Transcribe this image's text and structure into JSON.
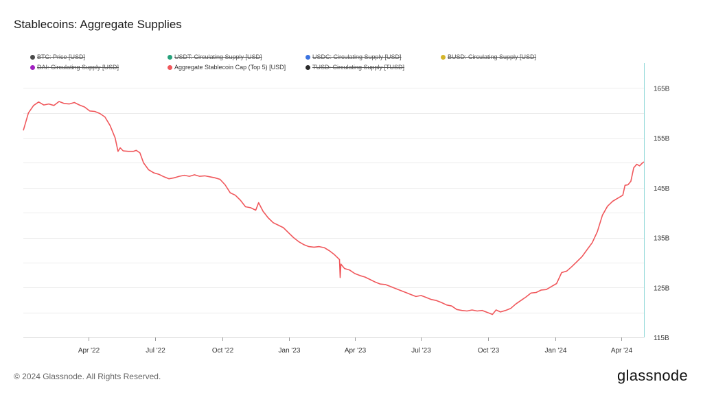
{
  "title": "Stablecoins: Aggregate Supplies",
  "footer": "© 2024 Glassnode. All Rights Reserved.",
  "logo": "glassnode",
  "legend": [
    {
      "label": "BTC: Price [USD]",
      "color": "#4a4a4a",
      "active": false
    },
    {
      "label": "USDT: Circulating Supply [USD]",
      "color": "#26a17b",
      "active": false
    },
    {
      "label": "USDC: Circulating Supply [USD]",
      "color": "#3b73e0",
      "active": false
    },
    {
      "label": "BUSD: Circulating Supply [USD]",
      "color": "#d4b52a",
      "active": false
    },
    {
      "label": "DAI: Circulating Supply [USD]",
      "color": "#a020c0",
      "active": false
    },
    {
      "label": "Aggregate Stablecoin Cap (Top 5) [USD]",
      "color": "#f0575b",
      "active": true
    },
    {
      "label": "TUSD: Circulating Supply [TUSD]",
      "color": "#2a2a2a",
      "active": false
    }
  ],
  "chart_data": {
    "type": "line",
    "title": "Stablecoins: Aggregate Supplies",
    "x_ticks": [
      "Apr '22",
      "Jul '22",
      "Oct '22",
      "Jan '23",
      "Apr '23",
      "Jul '23",
      "Oct '23",
      "Jan '24",
      "Apr '24"
    ],
    "y_ticks": [
      "115B",
      "125B",
      "135B",
      "145B",
      "155B",
      "165B"
    ],
    "ylim": [
      115,
      170
    ],
    "y_unit": "B USD",
    "y_axis_side": "right",
    "grid": "horizontal",
    "series": [
      {
        "name": "Aggregate Stablecoin Cap (Top 5) [USD]",
        "color": "#f0575b",
        "points": [
          [
            "2022-01-01",
            156.5
          ],
          [
            "2022-01-08",
            160.0
          ],
          [
            "2022-01-15",
            161.5
          ],
          [
            "2022-01-22",
            162.2
          ],
          [
            "2022-01-29",
            161.6
          ],
          [
            "2022-02-05",
            161.8
          ],
          [
            "2022-02-12",
            161.5
          ],
          [
            "2022-02-19",
            162.3
          ],
          [
            "2022-02-26",
            161.9
          ],
          [
            "2022-03-05",
            161.8
          ],
          [
            "2022-03-12",
            162.1
          ],
          [
            "2022-03-19",
            161.6
          ],
          [
            "2022-03-26",
            161.2
          ],
          [
            "2022-04-02",
            160.4
          ],
          [
            "2022-04-09",
            160.3
          ],
          [
            "2022-04-16",
            159.9
          ],
          [
            "2022-04-23",
            159.2
          ],
          [
            "2022-04-30",
            157.5
          ],
          [
            "2022-05-07",
            155.0
          ],
          [
            "2022-05-11",
            152.3
          ],
          [
            "2022-05-14",
            153.0
          ],
          [
            "2022-05-18",
            152.4
          ],
          [
            "2022-05-25",
            152.3
          ],
          [
            "2022-06-01",
            152.3
          ],
          [
            "2022-06-05",
            152.5
          ],
          [
            "2022-06-10",
            152.0
          ],
          [
            "2022-06-15",
            150.0
          ],
          [
            "2022-06-22",
            148.6
          ],
          [
            "2022-06-29",
            148.0
          ],
          [
            "2022-07-06",
            147.7
          ],
          [
            "2022-07-13",
            147.2
          ],
          [
            "2022-07-20",
            146.8
          ],
          [
            "2022-07-27",
            147.0
          ],
          [
            "2022-08-03",
            147.3
          ],
          [
            "2022-08-10",
            147.5
          ],
          [
            "2022-08-17",
            147.3
          ],
          [
            "2022-08-24",
            147.6
          ],
          [
            "2022-08-31",
            147.3
          ],
          [
            "2022-09-07",
            147.4
          ],
          [
            "2022-09-14",
            147.2
          ],
          [
            "2022-09-21",
            147.0
          ],
          [
            "2022-09-28",
            146.7
          ],
          [
            "2022-10-05",
            145.6
          ],
          [
            "2022-10-12",
            144.0
          ],
          [
            "2022-10-19",
            143.5
          ],
          [
            "2022-10-26",
            142.5
          ],
          [
            "2022-11-02",
            141.2
          ],
          [
            "2022-11-09",
            141.0
          ],
          [
            "2022-11-16",
            140.5
          ],
          [
            "2022-11-20",
            142.0
          ],
          [
            "2022-11-26",
            140.3
          ],
          [
            "2022-12-03",
            139.0
          ],
          [
            "2022-12-10",
            138.0
          ],
          [
            "2022-12-17",
            137.5
          ],
          [
            "2022-12-24",
            137.0
          ],
          [
            "2022-12-31",
            136.0
          ],
          [
            "2023-01-07",
            135.0
          ],
          [
            "2023-01-14",
            134.2
          ],
          [
            "2023-01-21",
            133.6
          ],
          [
            "2023-01-28",
            133.2
          ],
          [
            "2023-02-04",
            133.1
          ],
          [
            "2023-02-11",
            133.2
          ],
          [
            "2023-02-18",
            133.0
          ],
          [
            "2023-02-25",
            132.4
          ],
          [
            "2023-03-04",
            131.6
          ],
          [
            "2023-03-09",
            130.9
          ],
          [
            "2023-03-11",
            130.6
          ],
          [
            "2023-03-12",
            127.0
          ],
          [
            "2023-03-13",
            129.7
          ],
          [
            "2023-03-18",
            128.8
          ],
          [
            "2023-03-25",
            128.5
          ],
          [
            "2023-04-01",
            127.8
          ],
          [
            "2023-04-08",
            127.4
          ],
          [
            "2023-04-15",
            127.1
          ],
          [
            "2023-04-22",
            126.6
          ],
          [
            "2023-04-29",
            126.1
          ],
          [
            "2023-05-06",
            125.7
          ],
          [
            "2023-05-13",
            125.6
          ],
          [
            "2023-05-20",
            125.2
          ],
          [
            "2023-05-27",
            124.8
          ],
          [
            "2023-06-03",
            124.4
          ],
          [
            "2023-06-10",
            124.0
          ],
          [
            "2023-06-17",
            123.6
          ],
          [
            "2023-06-24",
            123.2
          ],
          [
            "2023-07-01",
            123.4
          ],
          [
            "2023-07-08",
            123.0
          ],
          [
            "2023-07-15",
            122.6
          ],
          [
            "2023-07-22",
            122.4
          ],
          [
            "2023-07-29",
            122.0
          ],
          [
            "2023-08-05",
            121.5
          ],
          [
            "2023-08-12",
            121.3
          ],
          [
            "2023-08-19",
            120.6
          ],
          [
            "2023-08-26",
            120.4
          ],
          [
            "2023-09-02",
            120.3
          ],
          [
            "2023-09-09",
            120.5
          ],
          [
            "2023-09-16",
            120.3
          ],
          [
            "2023-09-23",
            120.4
          ],
          [
            "2023-09-30",
            120.0
          ],
          [
            "2023-10-07",
            119.6
          ],
          [
            "2023-10-12",
            120.5
          ],
          [
            "2023-10-18",
            120.1
          ],
          [
            "2023-10-25",
            120.4
          ],
          [
            "2023-11-01",
            120.8
          ],
          [
            "2023-11-08",
            121.7
          ],
          [
            "2023-11-15",
            122.4
          ],
          [
            "2023-11-22",
            123.1
          ],
          [
            "2023-11-29",
            123.9
          ],
          [
            "2023-12-06",
            124.0
          ],
          [
            "2023-12-13",
            124.5
          ],
          [
            "2023-12-20",
            124.6
          ],
          [
            "2023-12-27",
            125.2
          ],
          [
            "2024-01-03",
            125.8
          ],
          [
            "2024-01-10",
            128.0
          ],
          [
            "2024-01-17",
            128.3
          ],
          [
            "2024-01-24",
            129.2
          ],
          [
            "2024-01-31",
            130.2
          ],
          [
            "2024-02-07",
            131.2
          ],
          [
            "2024-02-14",
            132.6
          ],
          [
            "2024-02-21",
            134.0
          ],
          [
            "2024-02-28",
            136.2
          ],
          [
            "2024-03-06",
            139.5
          ],
          [
            "2024-03-13",
            141.3
          ],
          [
            "2024-03-20",
            142.3
          ],
          [
            "2024-03-27",
            142.9
          ],
          [
            "2024-04-03",
            143.5
          ],
          [
            "2024-04-06",
            145.5
          ],
          [
            "2024-04-10",
            145.6
          ],
          [
            "2024-04-14",
            146.3
          ],
          [
            "2024-04-18",
            149.0
          ],
          [
            "2024-04-22",
            149.7
          ],
          [
            "2024-04-26",
            149.4
          ],
          [
            "2024-04-30",
            150.0
          ],
          [
            "2024-05-02",
            150.2
          ]
        ]
      }
    ]
  }
}
